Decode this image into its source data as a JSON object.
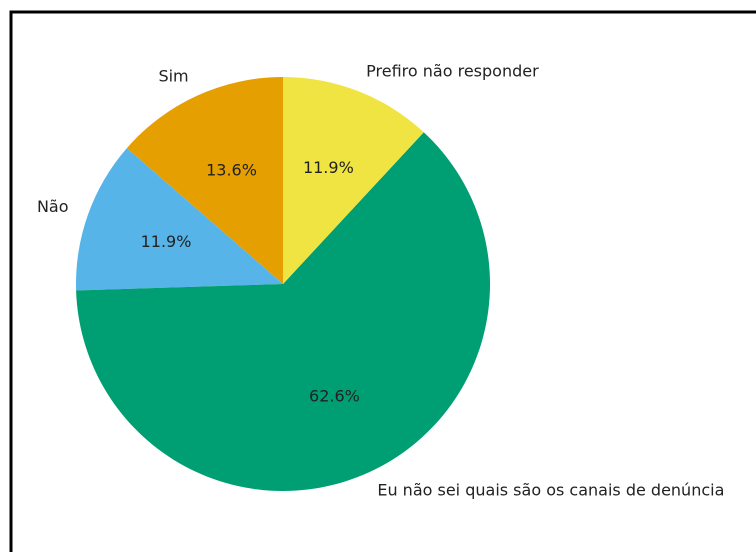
{
  "chart_data": {
    "type": "pie",
    "categories": [
      "Sim",
      "Não",
      "Eu não sei quais são os canais de denúncia",
      "Prefiro não responder"
    ],
    "values": [
      13.6,
      11.9,
      62.6,
      11.9
    ],
    "value_labels": [
      "13.6%",
      "11.9%",
      "62.6%",
      "11.9%"
    ],
    "colors": [
      "#e69f00",
      "#56b4e9",
      "#009e73",
      "#f0e442"
    ]
  }
}
